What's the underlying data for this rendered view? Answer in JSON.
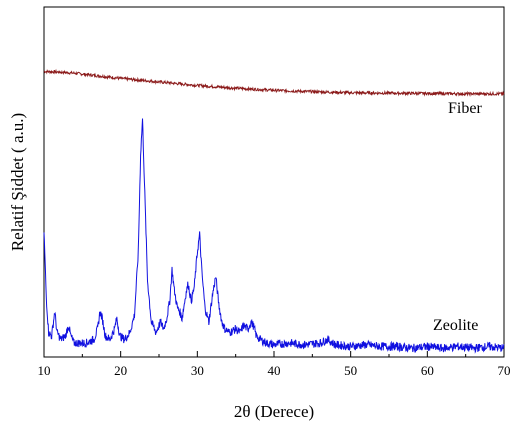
{
  "chart_data": {
    "type": "line",
    "title": "",
    "xlabel": "2θ  (Derece)",
    "ylabel": "Relatif Şiddet ( a.u.)",
    "xlim": [
      10,
      70
    ],
    "ylim": [
      0,
      1
    ],
    "x_ticks": [
      10,
      20,
      30,
      40,
      50,
      60,
      70
    ],
    "x_tick_labels": [
      "10",
      "20",
      "30",
      "40",
      "50",
      "60",
      "70"
    ],
    "y_tick_labels_shown": false,
    "grid": false,
    "legend": "none (series labeled inline)",
    "series": [
      {
        "name": "Fiber",
        "color": "#8b1a1a",
        "x": [
          10,
          12,
          14,
          16,
          18,
          20,
          25,
          30,
          35,
          40,
          45,
          50,
          55,
          60,
          65,
          70
        ],
        "y": [
          0.816,
          0.814,
          0.811,
          0.806,
          0.801,
          0.796,
          0.786,
          0.776,
          0.768,
          0.762,
          0.758,
          0.755,
          0.754,
          0.753,
          0.752,
          0.752
        ]
      },
      {
        "name": "Zeolite",
        "color": "#1010e0",
        "x": [
          10.0,
          10.3,
          10.6,
          11.0,
          11.4,
          11.7,
          12.2,
          12.8,
          13.2,
          13.5,
          13.9,
          14.5,
          15.5,
          16.5,
          17.0,
          17.3,
          17.6,
          18.0,
          18.6,
          19.2,
          19.5,
          19.9,
          20.5,
          21.2,
          21.8,
          22.3,
          22.6,
          22.85,
          23.1,
          23.5,
          24.0,
          24.6,
          25.2,
          25.6,
          26.0,
          26.4,
          26.7,
          27.0,
          27.4,
          27.7,
          28.0,
          28.5,
          28.8,
          29.2,
          29.6,
          30.0,
          30.3,
          30.6,
          31.0,
          31.5,
          32.0,
          32.4,
          32.8,
          33.2,
          33.6,
          34.2,
          35.0,
          35.6,
          36.0,
          36.6,
          37.0,
          37.3,
          37.7,
          38.2,
          39.0,
          40.0,
          42.0,
          44.0,
          46.0,
          47.0,
          48.0,
          50.0,
          52.0,
          54.0,
          56.0,
          58.0,
          60.0,
          62.0,
          64.0,
          66.0,
          68.0,
          70.0
        ],
        "y": [
          0.36,
          0.17,
          0.07,
          0.06,
          0.13,
          0.07,
          0.05,
          0.06,
          0.09,
          0.06,
          0.04,
          0.04,
          0.04,
          0.05,
          0.08,
          0.13,
          0.11,
          0.06,
          0.05,
          0.08,
          0.11,
          0.06,
          0.05,
          0.07,
          0.12,
          0.3,
          0.58,
          0.68,
          0.5,
          0.22,
          0.1,
          0.07,
          0.1,
          0.08,
          0.11,
          0.16,
          0.25,
          0.19,
          0.14,
          0.13,
          0.11,
          0.18,
          0.21,
          0.16,
          0.2,
          0.3,
          0.35,
          0.24,
          0.14,
          0.1,
          0.18,
          0.23,
          0.15,
          0.1,
          0.08,
          0.07,
          0.08,
          0.07,
          0.09,
          0.08,
          0.1,
          0.09,
          0.06,
          0.05,
          0.04,
          0.035,
          0.04,
          0.035,
          0.04,
          0.05,
          0.035,
          0.03,
          0.035,
          0.03,
          0.03,
          0.025,
          0.03,
          0.025,
          0.03,
          0.025,
          0.03,
          0.025
        ]
      }
    ]
  }
}
